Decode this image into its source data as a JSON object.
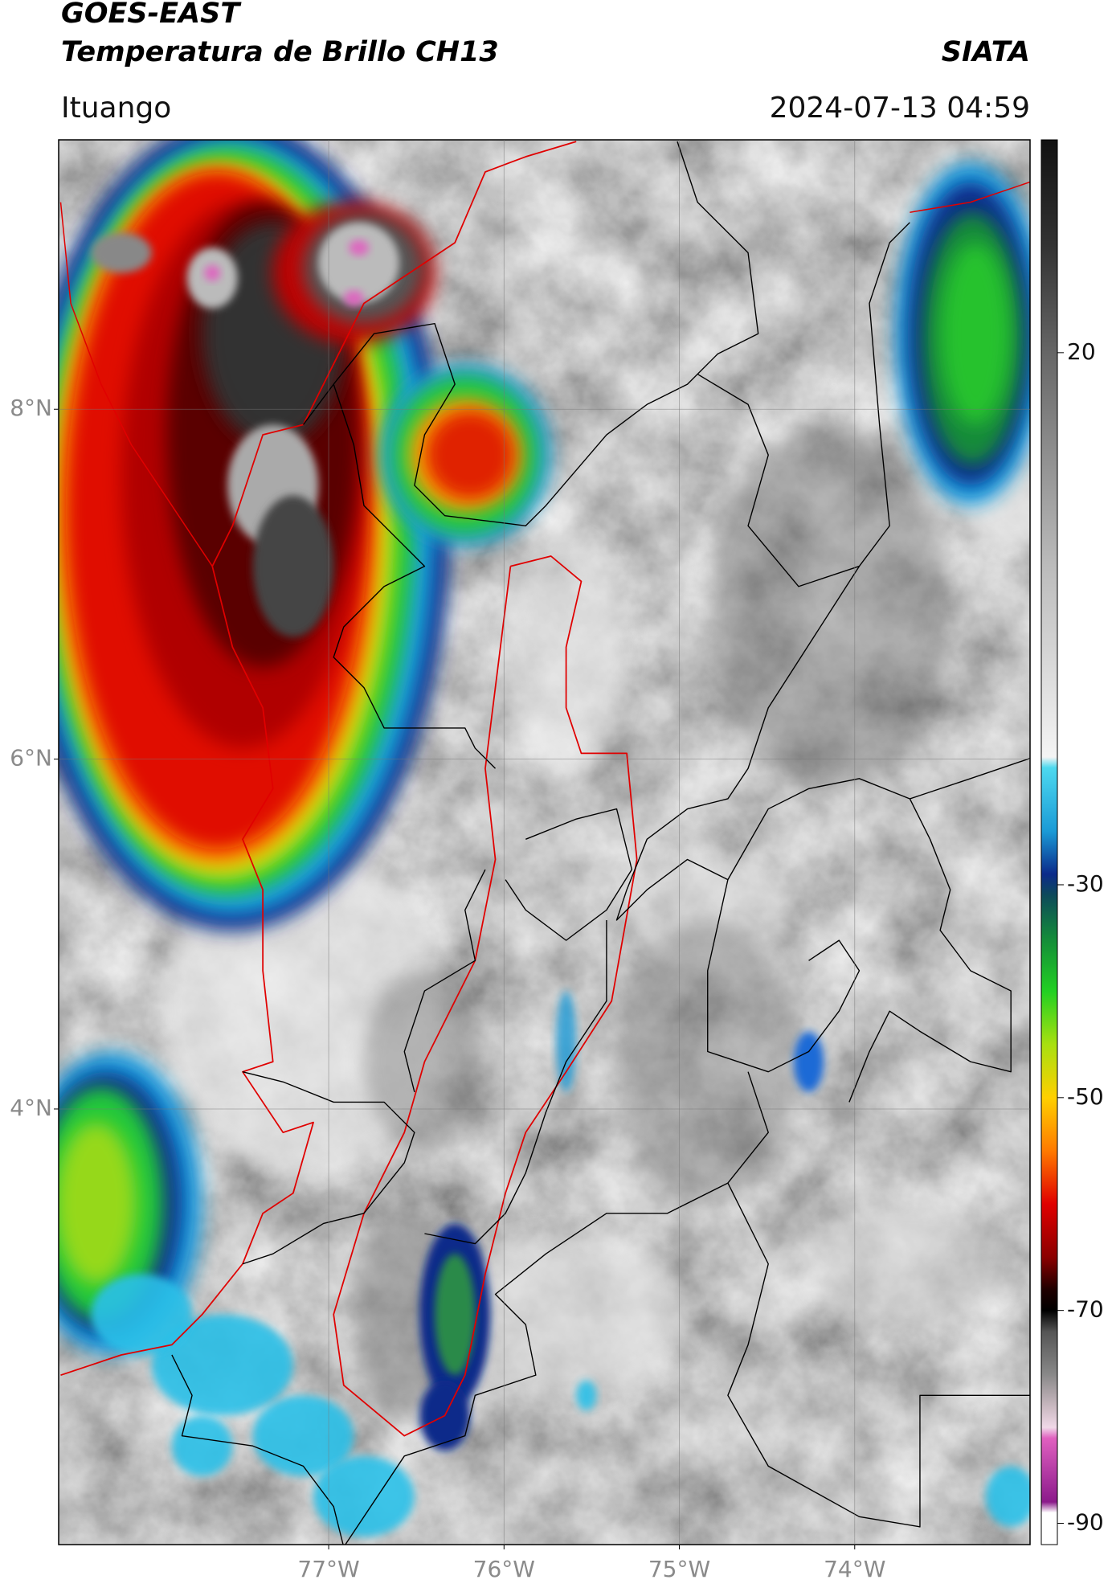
{
  "chart_data": {
    "type": "map",
    "title": "GOES-EAST",
    "subtitle": "Temperatura de Brillo CH13",
    "source": "SIATA",
    "region": "Ituango",
    "datetime": "2024-07-13 04:59",
    "xlim": [
      -78.54,
      -73.0
    ],
    "ylim": [
      1.51,
      9.54
    ],
    "xticks": [
      {
        "value": -77,
        "label": "77°W"
      },
      {
        "value": -76,
        "label": "76°W"
      },
      {
        "value": -75,
        "label": "75°W"
      },
      {
        "value": -74,
        "label": "74°W"
      }
    ],
    "yticks": [
      {
        "value": 8,
        "label": "8°N"
      },
      {
        "value": 6,
        "label": "6°N"
      },
      {
        "value": 4,
        "label": "4°N"
      }
    ],
    "grid": true,
    "colorbar": {
      "lim": [
        -92,
        40
      ],
      "ticks": [
        20,
        -30,
        -50,
        -70,
        -90
      ]
    }
  }
}
